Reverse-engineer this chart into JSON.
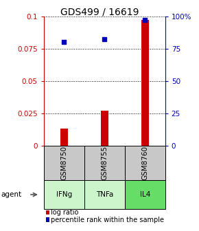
{
  "title": "GDS499 / 16619",
  "samples": [
    "GSM8750",
    "GSM8755",
    "GSM8760"
  ],
  "agents": [
    "IFNg",
    "TNFa",
    "IL4"
  ],
  "log_ratios": [
    0.013,
    0.027,
    0.097
  ],
  "percentile_ranks": [
    80.0,
    82.0,
    97.0
  ],
  "ylim_left": [
    0,
    0.1
  ],
  "ylim_right": [
    0,
    100
  ],
  "yticks_left": [
    0,
    0.025,
    0.05,
    0.075,
    0.1
  ],
  "yticks_right": [
    0,
    25,
    50,
    75,
    100
  ],
  "ytick_labels_left": [
    "0",
    "0.025",
    "0.05",
    "0.075",
    "0.1"
  ],
  "ytick_labels_right": [
    "0",
    "25",
    "50",
    "75",
    "100%"
  ],
  "bar_color": "#cc0000",
  "dot_color": "#0000bb",
  "gray_cell_color": "#c8c8c8",
  "agent_colors": [
    "#ccf5cc",
    "#ccf5cc",
    "#66dd66"
  ],
  "legend_bar_label": "log ratio",
  "legend_dot_label": "percentile rank within the sample",
  "background_color": "#ffffff",
  "title_fontsize": 10,
  "axis_fontsize": 7.5,
  "cell_fontsize": 7.5,
  "legend_fontsize": 7.0
}
